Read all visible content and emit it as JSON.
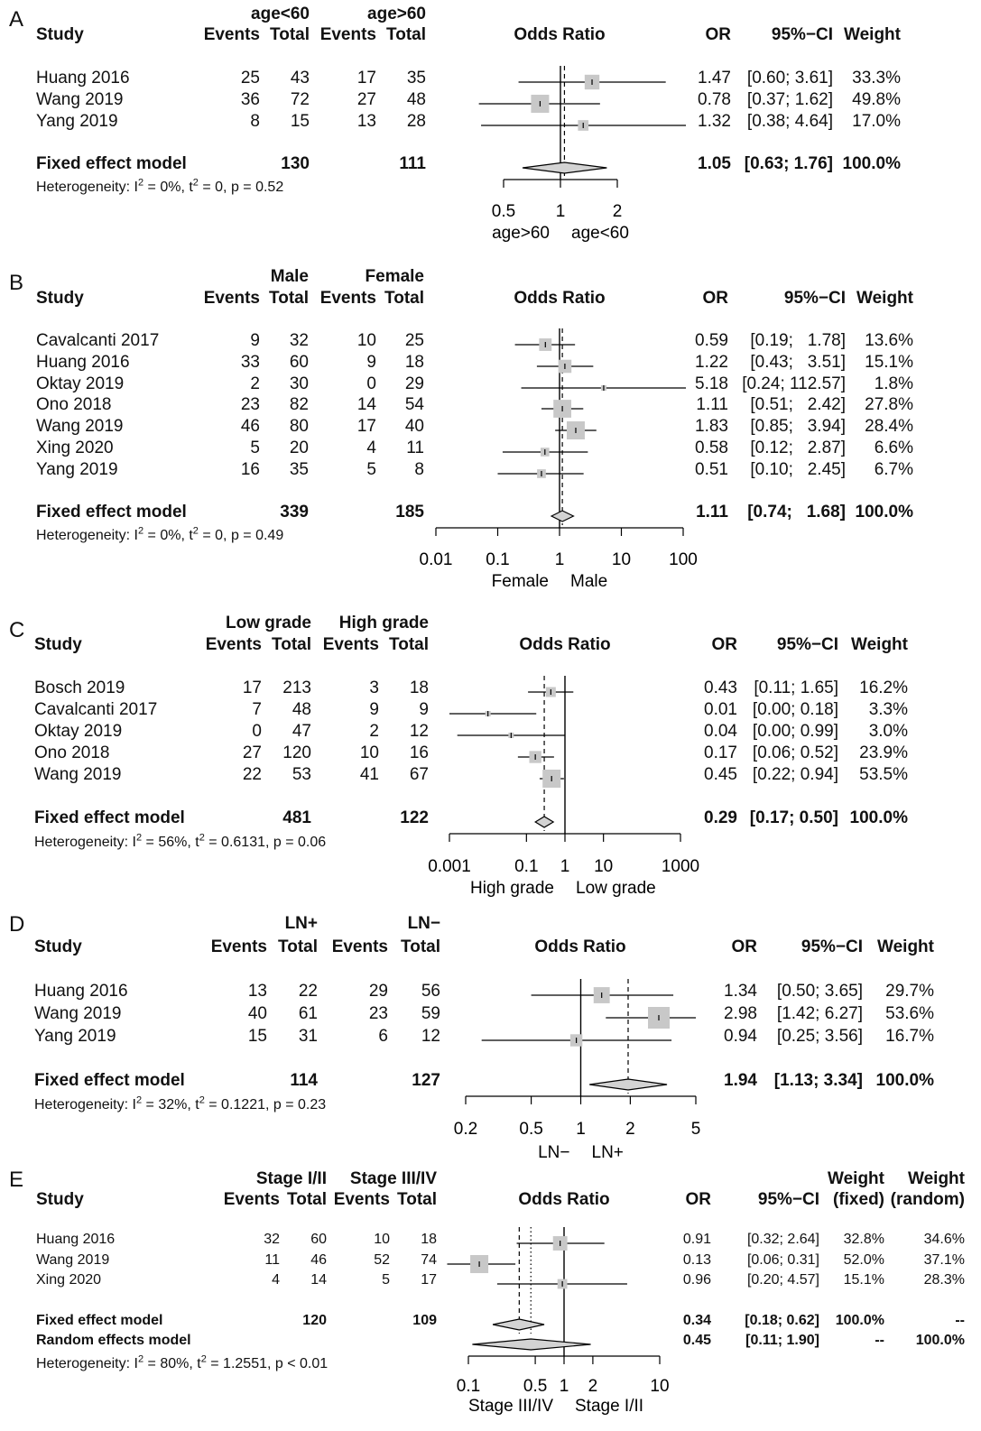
{
  "panels": [
    {
      "label": "A",
      "col_groups": [
        "age<60",
        "age>60"
      ],
      "headers": {
        "study": "Study",
        "events": "Events",
        "total": "Total",
        "plot": "Odds Ratio",
        "or": "OR",
        "ci": "95%−CI",
        "weight": "Weight"
      },
      "studies": [
        {
          "name": "Huang 2016",
          "e1": "25",
          "t1": "43",
          "e2": "17",
          "t2": "35",
          "or": "1.47",
          "ci": "[0.60; 3.61]",
          "w": "33.3%"
        },
        {
          "name": "Wang 2019",
          "e1": "36",
          "t1": "72",
          "e2": "27",
          "t2": "48",
          "or": "0.78",
          "ci": "[0.37; 1.62]",
          "w": "49.8%"
        },
        {
          "name": "Yang 2019",
          "e1": "8",
          "t1": "15",
          "e2": "13",
          "t2": "28",
          "or": "1.32",
          "ci": "[0.38; 4.64]",
          "w": "17.0%"
        }
      ],
      "summary": [
        {
          "name": "Fixed effect model",
          "t1": "130",
          "t2": "111",
          "or": "1.05",
          "ci": "[0.63; 1.76]",
          "w": "100.0%"
        }
      ],
      "heterogeneity": {
        "i2": "0%",
        "tau2": "0",
        "p": "p = 0.52"
      },
      "ticks": [
        "0.5",
        "1",
        "2"
      ],
      "direction": {
        "left": "age>60",
        "right": "age<60"
      }
    },
    {
      "label": "B",
      "col_groups": [
        "Male",
        "Female"
      ],
      "headers": {
        "study": "Study",
        "events": "Events",
        "total": "Total",
        "plot": "Odds Ratio",
        "or": "OR",
        "ci": "95%−CI",
        "weight": "Weight"
      },
      "studies": [
        {
          "name": "Cavalcanti 2017",
          "e1": "9",
          "t1": "32",
          "e2": "10",
          "t2": "25",
          "or": "0.59",
          "ci": "[0.19;   1.78]",
          "w": "13.6%"
        },
        {
          "name": "Huang 2016",
          "e1": "33",
          "t1": "60",
          "e2": "9",
          "t2": "18",
          "or": "1.22",
          "ci": "[0.43;   3.51]",
          "w": "15.1%"
        },
        {
          "name": "Oktay 2019",
          "e1": "2",
          "t1": "30",
          "e2": "0",
          "t2": "29",
          "or": "5.18",
          "ci": "[0.24; 112.57]",
          "w": "1.8%"
        },
        {
          "name": "Ono 2018",
          "e1": "23",
          "t1": "82",
          "e2": "14",
          "t2": "54",
          "or": "1.11",
          "ci": "[0.51;   2.42]",
          "w": "27.8%"
        },
        {
          "name": "Wang 2019",
          "e1": "46",
          "t1": "80",
          "e2": "17",
          "t2": "40",
          "or": "1.83",
          "ci": "[0.85;   3.94]",
          "w": "28.4%"
        },
        {
          "name": "Xing 2020",
          "e1": "5",
          "t1": "20",
          "e2": "4",
          "t2": "11",
          "or": "0.58",
          "ci": "[0.12;   2.87]",
          "w": "6.6%"
        },
        {
          "name": "Yang 2019",
          "e1": "16",
          "t1": "35",
          "e2": "5",
          "t2": "8",
          "or": "0.51",
          "ci": "[0.10;   2.45]",
          "w": "6.7%"
        }
      ],
      "summary": [
        {
          "name": "Fixed effect model",
          "t1": "339",
          "t2": "185",
          "or": "1.11",
          "ci": "[0.74;   1.68]",
          "w": "100.0%"
        }
      ],
      "heterogeneity": {
        "i2": "0%",
        "tau2": "0",
        "p": "p = 0.49"
      },
      "ticks": [
        "0.01",
        "0.1",
        "1",
        "10",
        "100"
      ],
      "direction": {
        "left": "Female",
        "right": "Male"
      }
    },
    {
      "label": "C",
      "col_groups": [
        "Low grade",
        "High grade"
      ],
      "headers": {
        "study": "Study",
        "events": "Events",
        "total": "Total",
        "plot": "Odds Ratio",
        "or": "OR",
        "ci": "95%−CI",
        "weight": "Weight"
      },
      "studies": [
        {
          "name": "Bosch 2019",
          "e1": "17",
          "t1": "213",
          "e2": "3",
          "t2": "18",
          "or": "0.43",
          "ci": "[0.11; 1.65]",
          "w": "16.2%"
        },
        {
          "name": "Cavalcanti 2017",
          "e1": "7",
          "t1": "48",
          "e2": "9",
          "t2": "9",
          "or": "0.01",
          "ci": "[0.00; 0.18]",
          "w": "3.3%"
        },
        {
          "name": "Oktay 2019",
          "e1": "0",
          "t1": "47",
          "e2": "2",
          "t2": "12",
          "or": "0.04",
          "ci": "[0.00; 0.99]",
          "w": "3.0%"
        },
        {
          "name": "Ono 2018",
          "e1": "27",
          "t1": "120",
          "e2": "10",
          "t2": "16",
          "or": "0.17",
          "ci": "[0.06; 0.52]",
          "w": "23.9%"
        },
        {
          "name": "Wang 2019",
          "e1": "22",
          "t1": "53",
          "e2": "41",
          "t2": "67",
          "or": "0.45",
          "ci": "[0.22; 0.94]",
          "w": "53.5%"
        }
      ],
      "summary": [
        {
          "name": "Fixed effect model",
          "t1": "481",
          "t2": "122",
          "or": "0.29",
          "ci": "[0.17; 0.50]",
          "w": "100.0%"
        }
      ],
      "heterogeneity": {
        "i2": "56%",
        "tau2": "0.6131",
        "p": "p = 0.06"
      },
      "ticks": [
        "0.001",
        "0.1",
        "1",
        "10",
        "1000"
      ],
      "direction": {
        "left": "High grade",
        "right": "Low grade"
      }
    },
    {
      "label": "D",
      "col_groups": [
        "LN+",
        "LN−"
      ],
      "headers": {
        "study": "Study",
        "events": "Events",
        "total": "Total",
        "plot": "Odds Ratio",
        "or": "OR",
        "ci": "95%−CI",
        "weight": "Weight"
      },
      "studies": [
        {
          "name": "Huang 2016",
          "e1": "13",
          "t1": "22",
          "e2": "29",
          "t2": "56",
          "or": "1.34",
          "ci": "[0.50; 3.65]",
          "w": "29.7%"
        },
        {
          "name": "Wang 2019",
          "e1": "40",
          "t1": "61",
          "e2": "23",
          "t2": "59",
          "or": "2.98",
          "ci": "[1.42; 6.27]",
          "w": "53.6%"
        },
        {
          "name": "Yang 2019",
          "e1": "15",
          "t1": "31",
          "e2": "6",
          "t2": "12",
          "or": "0.94",
          "ci": "[0.25; 3.56]",
          "w": "16.7%"
        }
      ],
      "summary": [
        {
          "name": "Fixed effect model",
          "t1": "114",
          "t2": "127",
          "or": "1.94",
          "ci": "[1.13; 3.34]",
          "w": "100.0%"
        }
      ],
      "heterogeneity": {
        "i2": "32%",
        "tau2": "0.1221",
        "p": "p = 0.23"
      },
      "ticks": [
        "0.2",
        "0.5",
        "1",
        "2",
        "5"
      ],
      "direction": {
        "left": "LN−",
        "right": "LN+"
      }
    },
    {
      "label": "E",
      "col_groups": [
        "Stage I/II",
        "Stage III/IV"
      ],
      "headers": {
        "study": "Study",
        "events": "Events",
        "total": "Total",
        "plot": "Odds Ratio",
        "or": "OR",
        "ci": "95%−CI",
        "weight": "Weight",
        "weight_fixed": "(fixed)",
        "weight_random": "(random)"
      },
      "studies": [
        {
          "name": "Huang 2016",
          "e1": "32",
          "t1": "60",
          "e2": "10",
          "t2": "18",
          "or": "0.91",
          "ci": "[0.32; 2.64]",
          "w": "32.8%",
          "wr": "34.6%"
        },
        {
          "name": "Wang 2019",
          "e1": "11",
          "t1": "46",
          "e2": "52",
          "t2": "74",
          "or": "0.13",
          "ci": "[0.06; 0.31]",
          "w": "52.0%",
          "wr": "37.1%"
        },
        {
          "name": "Xing 2020",
          "e1": "4",
          "t1": "14",
          "e2": "5",
          "t2": "17",
          "or": "0.96",
          "ci": "[0.20; 4.57]",
          "w": "15.1%",
          "wr": "28.3%"
        }
      ],
      "summary": [
        {
          "name": "Fixed effect model",
          "t1": "120",
          "t2": "109",
          "or": "0.34",
          "ci": "[0.18; 0.62]",
          "w": "100.0%",
          "wr": "--"
        },
        {
          "name": "Random effects model",
          "t1": "",
          "t2": "",
          "or": "0.45",
          "ci": "[0.11; 1.90]",
          "w": "--",
          "wr": "100.0%"
        }
      ],
      "heterogeneity": {
        "i2": "80%",
        "tau2": "1.2551",
        "p": "p < 0.01"
      },
      "ticks": [
        "0.1",
        "0.5",
        "1",
        "2",
        "10"
      ],
      "direction": {
        "left": "Stage III/IV",
        "right": "Stage I/II"
      }
    }
  ],
  "chart_data": [
    {
      "type": "forest",
      "label": "A",
      "x_scale": "log",
      "xlim": [
        0.4,
        2.5
      ],
      "xticks": [
        0.5,
        1,
        2
      ],
      "studies": [
        {
          "name": "Huang 2016",
          "or": 1.47,
          "lo": 0.6,
          "hi": 3.61,
          "weight": 33.3
        },
        {
          "name": "Wang 2019",
          "or": 0.78,
          "lo": 0.37,
          "hi": 1.62,
          "weight": 49.8
        },
        {
          "name": "Yang 2019",
          "or": 1.32,
          "lo": 0.38,
          "hi": 4.64,
          "weight": 17.0
        }
      ],
      "summary": [
        {
          "name": "Fixed effect model",
          "or": 1.05,
          "lo": 0.63,
          "hi": 1.76,
          "line": "dashed"
        }
      ]
    },
    {
      "type": "forest",
      "label": "B",
      "x_scale": "log",
      "xlim": [
        0.01,
        100
      ],
      "xticks": [
        0.01,
        0.1,
        1,
        10,
        100
      ],
      "studies": [
        {
          "name": "Cavalcanti 2017",
          "or": 0.59,
          "lo": 0.19,
          "hi": 1.78,
          "weight": 13.6
        },
        {
          "name": "Huang 2016",
          "or": 1.22,
          "lo": 0.43,
          "hi": 3.51,
          "weight": 15.1
        },
        {
          "name": "Oktay 2019",
          "or": 5.18,
          "lo": 0.24,
          "hi": 112.57,
          "weight": 1.8
        },
        {
          "name": "Ono 2018",
          "or": 1.11,
          "lo": 0.51,
          "hi": 2.42,
          "weight": 27.8
        },
        {
          "name": "Wang 2019",
          "or": 1.83,
          "lo": 0.85,
          "hi": 3.94,
          "weight": 28.4
        },
        {
          "name": "Xing 2020",
          "or": 0.58,
          "lo": 0.12,
          "hi": 2.87,
          "weight": 6.6
        },
        {
          "name": "Yang 2019",
          "or": 0.51,
          "lo": 0.1,
          "hi": 2.45,
          "weight": 6.7
        }
      ],
      "summary": [
        {
          "name": "Fixed effect model",
          "or": 1.11,
          "lo": 0.74,
          "hi": 1.68,
          "line": "dashed"
        }
      ]
    },
    {
      "type": "forest",
      "label": "C",
      "x_scale": "log",
      "xlim": [
        0.001,
        1000
      ],
      "xticks": [
        0.001,
        0.1,
        1,
        10,
        1000
      ],
      "studies": [
        {
          "name": "Bosch 2019",
          "or": 0.43,
          "lo": 0.11,
          "hi": 1.65,
          "weight": 16.2
        },
        {
          "name": "Cavalcanti 2017",
          "or": 0.01,
          "lo": 0.0001,
          "hi": 0.18,
          "weight": 3.3
        },
        {
          "name": "Oktay 2019",
          "or": 0.04,
          "lo": 0.0016,
          "hi": 0.99,
          "weight": 3.0
        },
        {
          "name": "Ono 2018",
          "or": 0.17,
          "lo": 0.06,
          "hi": 0.52,
          "weight": 23.9
        },
        {
          "name": "Wang 2019",
          "or": 0.45,
          "lo": 0.22,
          "hi": 0.94,
          "weight": 53.5
        }
      ],
      "summary": [
        {
          "name": "Fixed effect model",
          "or": 0.29,
          "lo": 0.17,
          "hi": 0.5,
          "line": "dashed"
        }
      ]
    },
    {
      "type": "forest",
      "label": "D",
      "x_scale": "log",
      "xlim": [
        0.2,
        5
      ],
      "xticks": [
        0.2,
        0.5,
        1,
        2,
        5
      ],
      "studies": [
        {
          "name": "Huang 2016",
          "or": 1.34,
          "lo": 0.5,
          "hi": 3.65,
          "weight": 29.7
        },
        {
          "name": "Wang 2019",
          "or": 2.98,
          "lo": 1.42,
          "hi": 6.27,
          "weight": 53.6
        },
        {
          "name": "Yang 2019",
          "or": 0.94,
          "lo": 0.25,
          "hi": 3.56,
          "weight": 16.7
        }
      ],
      "summary": [
        {
          "name": "Fixed effect model",
          "or": 1.94,
          "lo": 1.13,
          "hi": 3.34,
          "line": "dashed"
        }
      ]
    },
    {
      "type": "forest",
      "label": "E",
      "x_scale": "log",
      "xlim": [
        0.1,
        10
      ],
      "xticks": [
        0.1,
        0.5,
        1,
        2,
        10
      ],
      "studies": [
        {
          "name": "Huang 2016",
          "or": 0.91,
          "lo": 0.32,
          "hi": 2.64,
          "weight": 32.8
        },
        {
          "name": "Wang 2019",
          "or": 0.13,
          "lo": 0.06,
          "hi": 0.31,
          "weight": 52.0
        },
        {
          "name": "Xing 2020",
          "or": 0.96,
          "lo": 0.2,
          "hi": 4.57,
          "weight": 15.1
        }
      ],
      "summary": [
        {
          "name": "Fixed effect model",
          "or": 0.34,
          "lo": 0.18,
          "hi": 0.62,
          "line": "dashed"
        },
        {
          "name": "Random effects model",
          "or": 0.45,
          "lo": 0.11,
          "hi": 1.9,
          "line": "dotted"
        }
      ]
    }
  ]
}
